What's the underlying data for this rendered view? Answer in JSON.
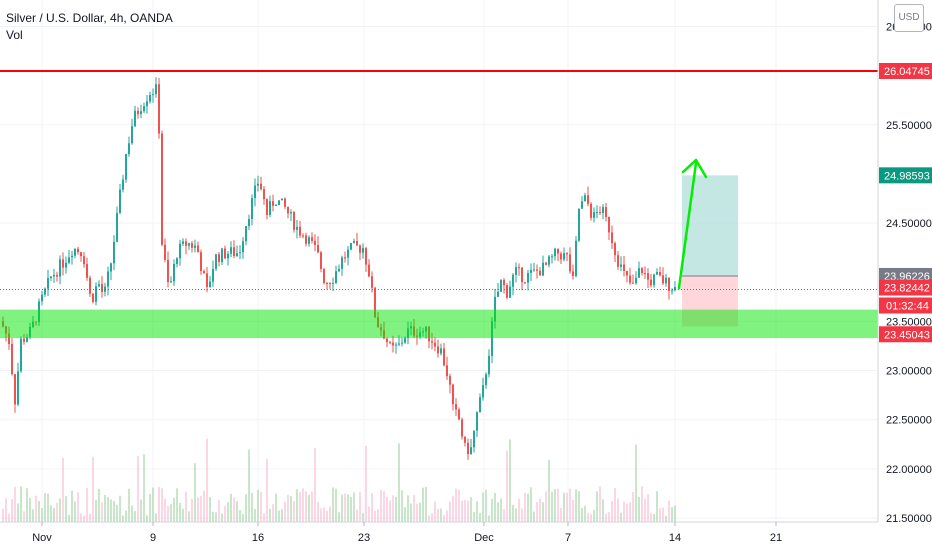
{
  "header": {
    "title": "Silver / U.S. Dollar, 4h, OANDA",
    "volume_label": "Vol",
    "currency_badge": "USD"
  },
  "chart_data": {
    "type": "candlestick",
    "title": "Silver / U.S. Dollar, 4h, OANDA",
    "x_ticks": [
      "Nov",
      "9",
      "16",
      "23",
      "Dec",
      "7",
      "14",
      "21"
    ],
    "y_ticks": [
      "21.50000",
      "22.00000",
      "22.50000",
      "23.00000",
      "23.50000",
      "24.50000",
      "25.50000",
      "26.50000"
    ],
    "ylim": [
      21.5,
      26.5
    ],
    "price_labels": [
      {
        "value": 26.04745,
        "text": "26.04745",
        "color": "#f23645"
      },
      {
        "value": 24.98593,
        "text": "24.98593",
        "color": "#089981"
      },
      {
        "value": 23.96226,
        "text": "23.96226",
        "color": "#787b86"
      },
      {
        "value": 23.82442,
        "text": "23.82442",
        "color": "#f23645"
      },
      {
        "value": 23.45043,
        "text": "23.45043",
        "color": "#f23645"
      }
    ],
    "countdown_label": "01:32:44",
    "resistance_line": 26.04745,
    "support_zone": {
      "low": 23.33,
      "high": 23.62
    },
    "position": {
      "entry": 23.96226,
      "target": 24.98593,
      "stop": 23.45043
    },
    "colors": {
      "up": "#26a69a",
      "down": "#ef5350",
      "support": "#00e600",
      "resistance": "#ff0000",
      "arrow": "#00ee00"
    }
  }
}
